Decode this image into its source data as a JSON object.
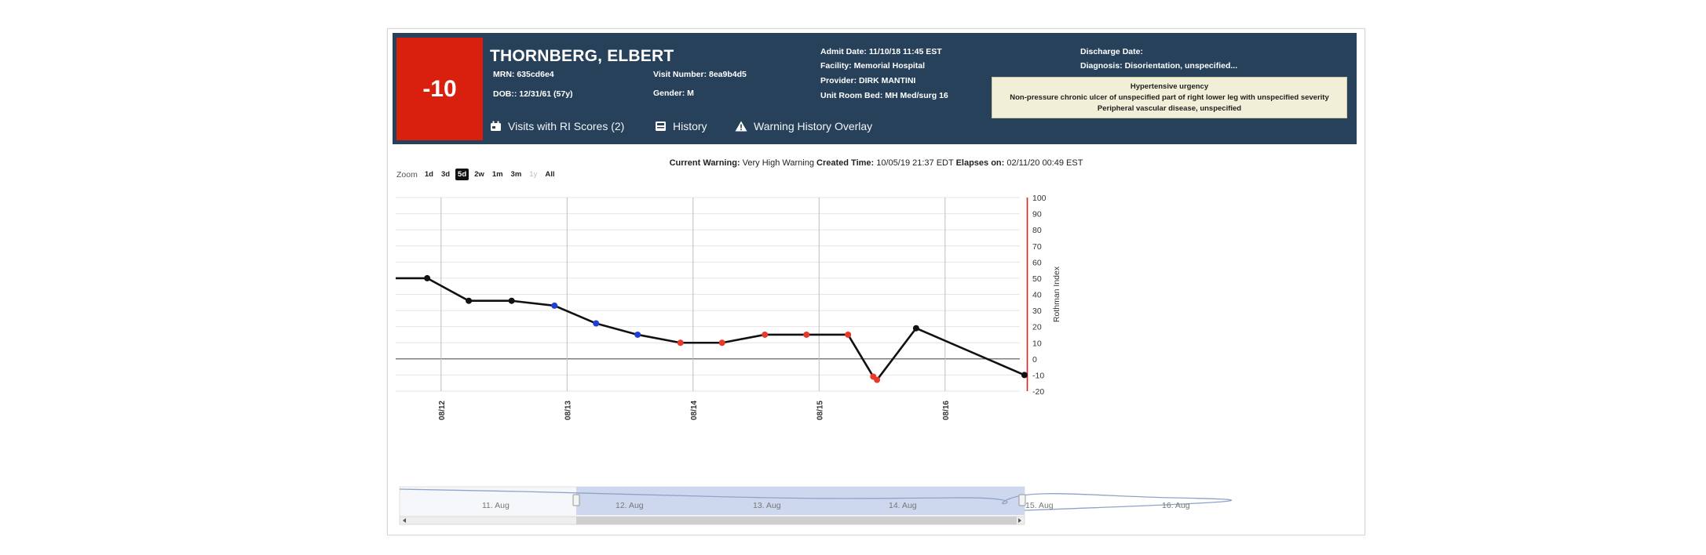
{
  "patient": {
    "score": "-10",
    "name": "THORNBERG, ELBERT",
    "mrn": "MRN: 635cd6e4",
    "dob": "DOB:: 12/31/61 (57y)",
    "visit_number": "Visit Number: 8ea9b4d5",
    "gender": "Gender: M",
    "admit_date": "Admit Date: 11/10/18 11:45 EST",
    "facility": "Facility: Memorial Hospital",
    "provider": "Provider: DIRK MANTINI",
    "unit_room_bed": "Unit Room Bed: MH Med/surg 16",
    "discharge_date": "Discharge Date:",
    "diagnosis": "Diagnosis: Disorientation, unspecified...",
    "diagnoses": [
      "Hypertensive urgency",
      "Non-pressure chronic ulcer of unspecified part of right lower leg with unspecified severity",
      "Peripheral vascular disease, unspecified"
    ]
  },
  "nav": {
    "visits": "Visits with RI Scores (2)",
    "history": "History",
    "warning_overlay": "Warning History Overlay"
  },
  "warning": {
    "label": "Current Warning:",
    "value": "Very High Warning",
    "created_label": "Created Time:",
    "created_value": "10/05/19 21:37 EDT",
    "elapses_label": "Elapses on:",
    "elapses_value": "02/11/20 00:49 EST"
  },
  "zoom": {
    "label": "Zoom",
    "options": [
      "1d",
      "3d",
      "5d",
      "2w",
      "1m",
      "3m",
      "1y",
      "All"
    ],
    "selected": "5d",
    "disabled": [
      "1y"
    ]
  },
  "colors": {
    "header_bg": "#27415a",
    "score_bg": "#d9200f",
    "line": "#111111",
    "point_black": "#111111",
    "point_blue": "#1f3fd6",
    "point_red": "#e8392a",
    "now_line": "#e02020",
    "navigator_fill": "#cdd7ee"
  },
  "chart_data": {
    "type": "line",
    "ylabel": "Rothman Index",
    "ylim": [
      -20,
      100
    ],
    "yticks": [
      100,
      90,
      80,
      70,
      60,
      50,
      40,
      30,
      20,
      10,
      0,
      -10,
      -20
    ],
    "xlim": [
      11.6,
      16.65
    ],
    "xticks": [
      {
        "x": 11.96,
        "label": "08/12"
      },
      {
        "x": 12.96,
        "label": "08/13"
      },
      {
        "x": 13.96,
        "label": "08/14"
      },
      {
        "x": 14.96,
        "label": "08/15"
      },
      {
        "x": 15.96,
        "label": "08/16"
      }
    ],
    "now_x": 16.6,
    "line_start": {
      "x": 11.6,
      "y": 50
    },
    "series": [
      {
        "points": [
          {
            "x": 11.85,
            "y": 50,
            "color": "black"
          },
          {
            "x": 12.18,
            "y": 36,
            "color": "black"
          },
          {
            "x": 12.52,
            "y": 36,
            "color": "black"
          },
          {
            "x": 12.86,
            "y": 33,
            "color": "blue"
          },
          {
            "x": 13.19,
            "y": 22,
            "color": "blue"
          },
          {
            "x": 13.52,
            "y": 15,
            "color": "blue"
          },
          {
            "x": 13.86,
            "y": 10,
            "color": "red"
          },
          {
            "x": 14.19,
            "y": 10,
            "color": "red"
          },
          {
            "x": 14.53,
            "y": 15,
            "color": "red"
          },
          {
            "x": 14.86,
            "y": 15,
            "color": "red"
          },
          {
            "x": 15.19,
            "y": 15,
            "color": "red"
          },
          {
            "x": 15.39,
            "y": -11,
            "color": "red"
          },
          {
            "x": 15.42,
            "y": -13,
            "color": "red"
          },
          {
            "x": 15.73,
            "y": 19,
            "color": "black"
          },
          {
            "x": 16.59,
            "y": -10,
            "color": "black"
          }
        ]
      }
    ],
    "navigator": {
      "labels": [
        "11. Aug",
        "12. Aug",
        "13. Aug",
        "14. Aug",
        "15. Aug",
        "16. Aug"
      ]
    }
  }
}
